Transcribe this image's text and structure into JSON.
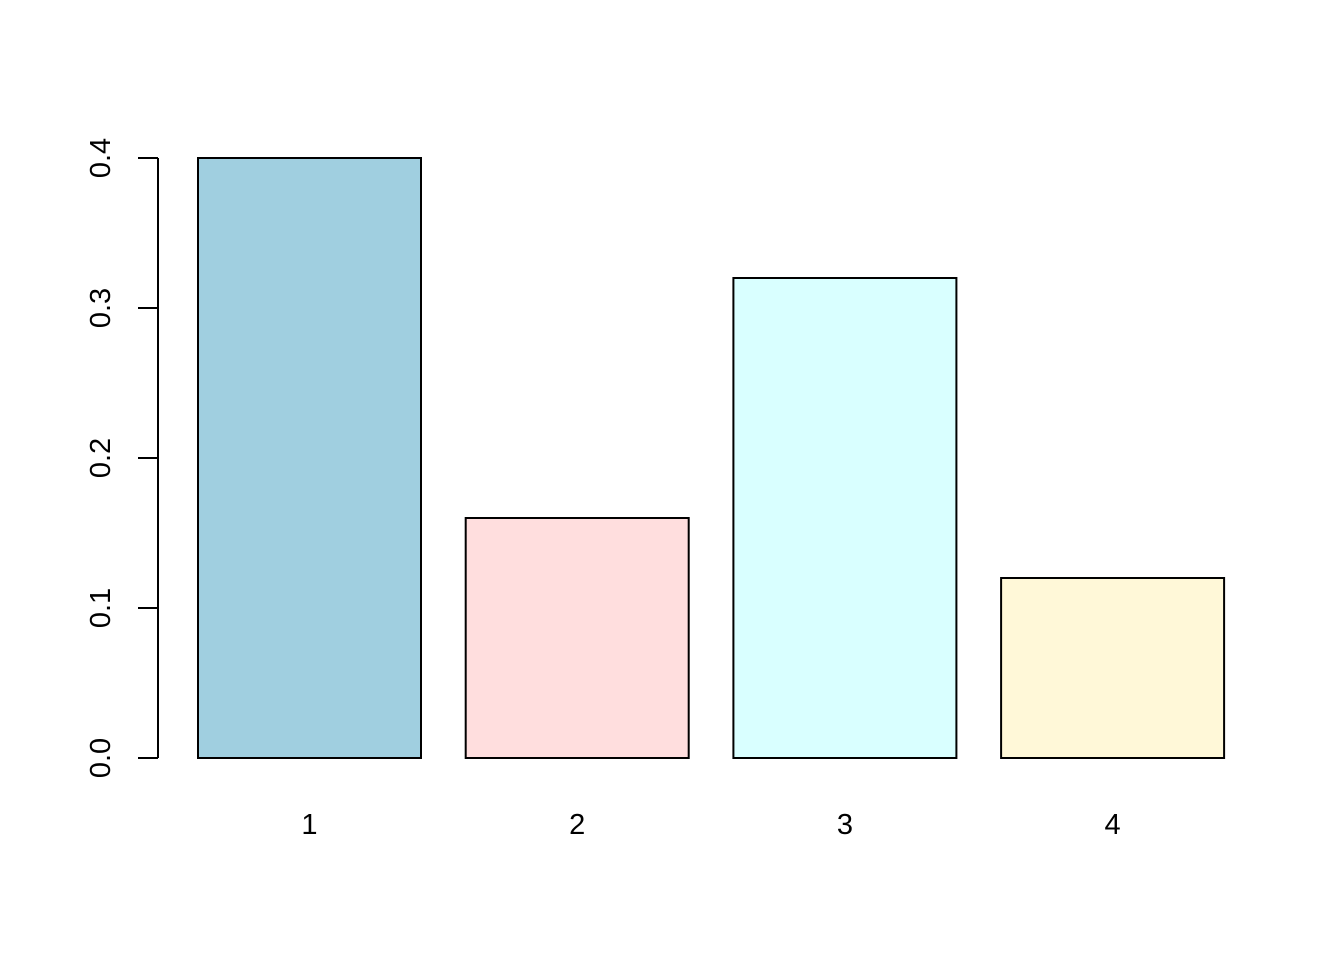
{
  "chart_data": {
    "type": "bar",
    "categories": [
      "1",
      "2",
      "3",
      "4"
    ],
    "values": [
      0.4,
      0.16,
      0.32,
      0.12
    ],
    "colors": [
      "#a0cfe0",
      "#ffdede",
      "#d9ffff",
      "#fff8d8"
    ],
    "ylim": [
      0,
      0.4
    ],
    "yticks": [
      0.0,
      0.1,
      0.2,
      0.3,
      0.4
    ],
    "ytick_labels": [
      "0.0",
      "0.1",
      "0.2",
      "0.3",
      "0.4"
    ],
    "title": "",
    "xlabel": "",
    "ylabel": "",
    "grid": false
  }
}
